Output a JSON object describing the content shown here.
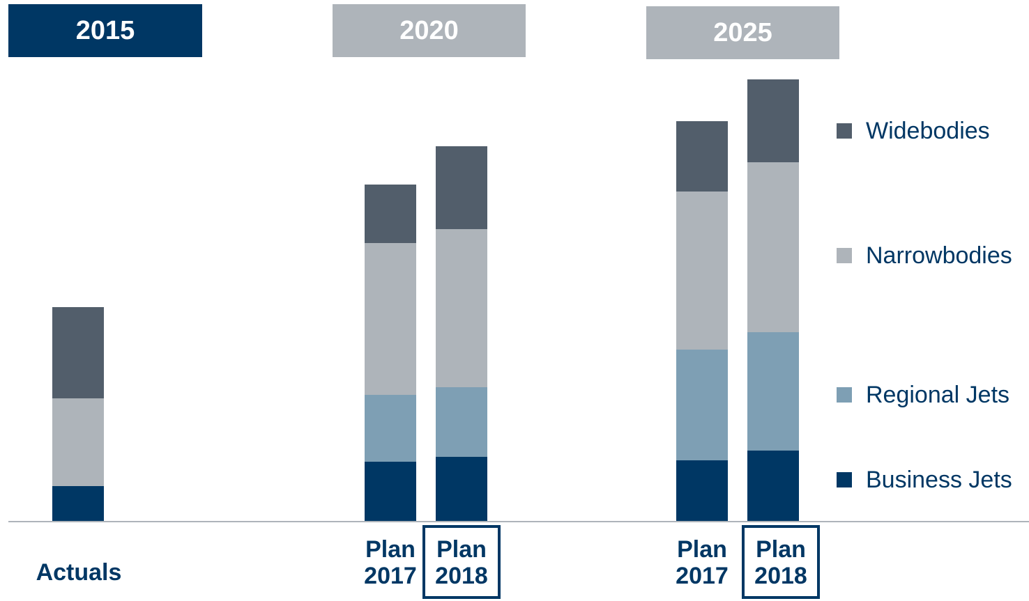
{
  "chart_data": {
    "type": "bar",
    "stacked": true,
    "groups": [
      {
        "title": "2015",
        "header_color": "#003764",
        "categories": [
          {
            "line1": "Actuals",
            "line2": "",
            "highlighted": false
          }
        ]
      },
      {
        "title": "2020",
        "header_color": "#aeb4ba",
        "categories": [
          {
            "line1": "Plan",
            "line2": "2017",
            "highlighted": false
          },
          {
            "line1": "Plan",
            "line2": "2018",
            "highlighted": true
          }
        ]
      },
      {
        "title": "2025",
        "header_color": "#aeb4ba",
        "categories": [
          {
            "line1": "Plan",
            "line2": "2017",
            "highlighted": false
          },
          {
            "line1": "Plan",
            "line2": "2018",
            "highlighted": true
          }
        ]
      }
    ],
    "series": [
      {
        "name": "Business Jets",
        "color": "#003764",
        "values": [
          50,
          85,
          92,
          87,
          101
        ]
      },
      {
        "name": "Regional Jets",
        "color": "#7e9fb4",
        "values": [
          0,
          96,
          100,
          159,
          170
        ]
      },
      {
        "name": "Narrowbodies",
        "color": "#aeb4ba",
        "values": [
          126,
          218,
          227,
          227,
          244
        ]
      },
      {
        "name": "Widebodies",
        "color": "#525e6b",
        "values": [
          131,
          84,
          119,
          101,
          119
        ]
      }
    ],
    "ylim": [
      0,
      634
    ],
    "legend_position": "right",
    "grid": false
  }
}
